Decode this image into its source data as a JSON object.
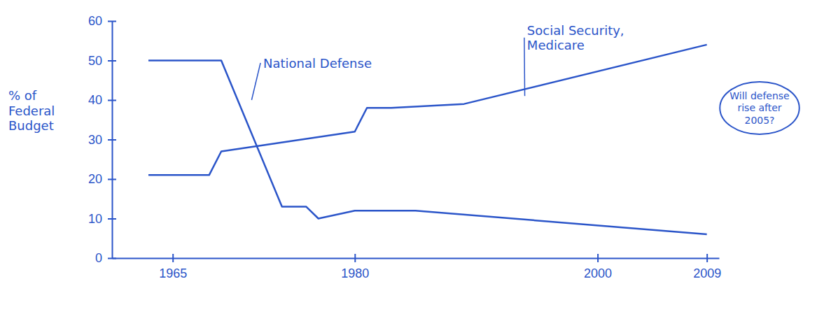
{
  "chart_data": {
    "type": "line",
    "y_label": "% of Federal Budget",
    "annotation": "Will defense rise after 2005?",
    "xlim": [
      1960,
      2010
    ],
    "xticks": [
      1965,
      1980,
      2000,
      2009
    ],
    "ylim": [
      0,
      60
    ],
    "yticks": [
      0,
      10,
      20,
      30,
      40,
      50,
      60
    ],
    "grid": false,
    "series": [
      {
        "name": "National Defense",
        "color": "#2b55c9",
        "line_style": "solid",
        "x": [
          1963,
          1969,
          1974,
          1976,
          1977,
          1980,
          1985,
          2009
        ],
        "values": [
          50,
          50,
          13,
          13,
          10,
          12,
          12,
          6
        ]
      },
      {
        "name": "Social Security, Medicare",
        "color": "#2b55c9",
        "line_style": "solid",
        "x": [
          1963,
          1968,
          1969,
          1980,
          1981,
          1983,
          1989,
          2009
        ],
        "values": [
          21,
          21,
          27,
          32,
          38,
          38,
          39,
          54
        ]
      }
    ]
  }
}
